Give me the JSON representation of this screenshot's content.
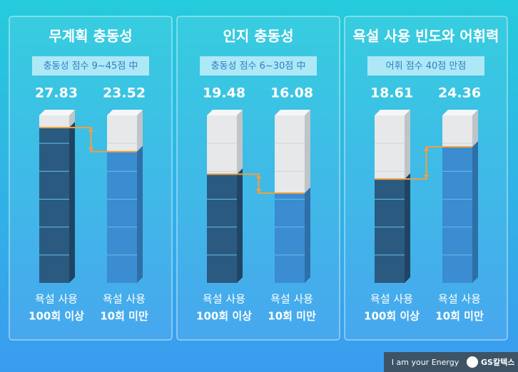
{
  "chart_data": [
    {
      "type": "bar",
      "title": "무계획 충동성",
      "subtitle": "충동성 점수 9~45점 中",
      "categories": [
        [
          "욕설 사용",
          "100회 이상"
        ],
        [
          "욕설 사용",
          "10회 미만"
        ]
      ],
      "values": [
        27.83,
        23.52
      ],
      "colors": [
        "#2b5a80",
        "#3b8cd0"
      ],
      "ylim": [
        0,
        30
      ]
    },
    {
      "type": "bar",
      "title": "인지 충동성",
      "subtitle": "충동성 점수 6~30점 中",
      "categories": [
        [
          "욕설 사용",
          "100회 이상"
        ],
        [
          "욕설 사용",
          "10회 미만"
        ]
      ],
      "values": [
        19.48,
        16.08
      ],
      "colors": [
        "#2b5a80",
        "#3b8cd0"
      ],
      "ylim": [
        0,
        30
      ]
    },
    {
      "type": "bar",
      "title": "욕설 사용 빈도와 어휘력",
      "subtitle": "어휘 점수 40점 만점",
      "categories": [
        [
          "욕설 사용",
          "100회 이상"
        ],
        [
          "욕설 사용",
          "10회 미만"
        ]
      ],
      "values": [
        18.61,
        24.36
      ],
      "colors": [
        "#2b5a80",
        "#3b8cd0"
      ],
      "ylim": [
        0,
        30
      ]
    }
  ],
  "footer": {
    "slogan": "I am your Energy",
    "brand": "GS칼텍스"
  }
}
